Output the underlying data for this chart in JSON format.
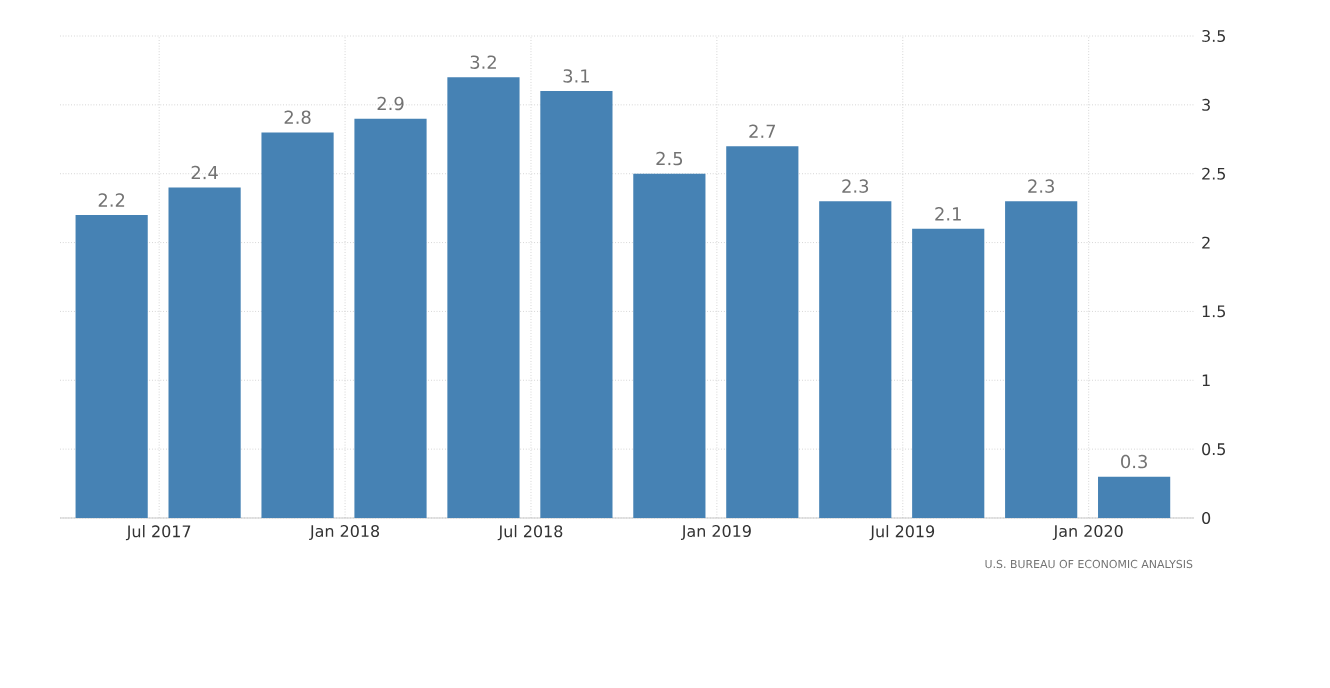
{
  "chart_data": {
    "type": "bar",
    "x": [
      "2017-05-15",
      "2017-08-15",
      "2017-11-15",
      "2018-02-15",
      "2018-05-15",
      "2018-08-15",
      "2018-11-15",
      "2019-02-15",
      "2019-05-15",
      "2019-08-15",
      "2019-11-15",
      "2020-02-15"
    ],
    "values": [
      2.2,
      2.4,
      2.8,
      2.9,
      3.2,
      3.1,
      2.5,
      2.7,
      2.3,
      2.1,
      2.3,
      0.3
    ],
    "color": "#4682b4",
    "xlim": [
      "2017-03-25",
      "2020-04-13"
    ],
    "xticks": [
      {
        "value": "2017-07",
        "label": "Jul 2017"
      },
      {
        "value": "2018-01",
        "label": "Jan 2018"
      },
      {
        "value": "2018-07",
        "label": "Jul 2018"
      },
      {
        "value": "2019-01",
        "label": "Jan 2019"
      },
      {
        "value": "2019-07",
        "label": "Jul 2019"
      },
      {
        "value": "2020-01",
        "label": "Jan 2020"
      }
    ],
    "ylim": [
      0,
      3.5
    ],
    "yticks": [
      0,
      0.5,
      1,
      1.5,
      2,
      2.5,
      3,
      3.5
    ],
    "grid": true,
    "data_labels": true,
    "annotations": [
      "U.S. BUREAU OF ECONOMIC ANALYSIS"
    ]
  }
}
